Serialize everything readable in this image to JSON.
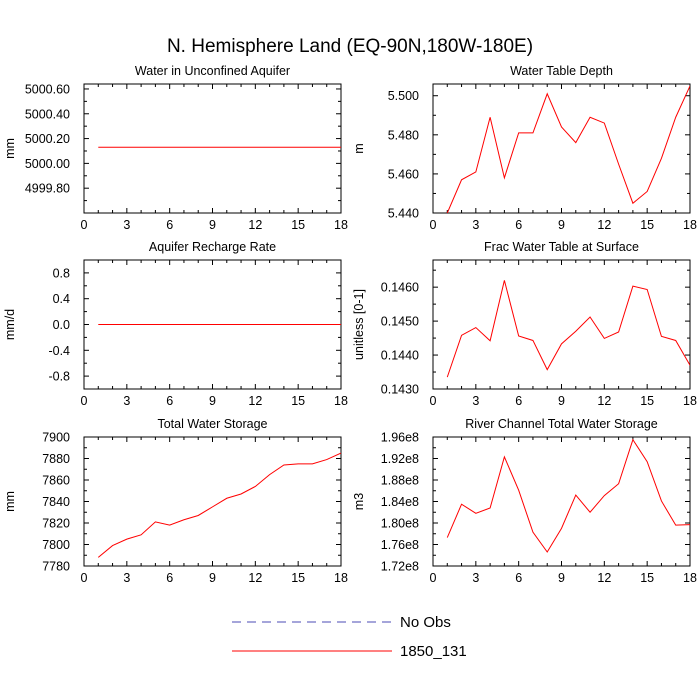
{
  "title": "N. Hemisphere Land (EQ-90N,180W-180E)",
  "colors": {
    "series": "#ff0000",
    "no_obs": "#4b4bb4",
    "axis": "#000000"
  },
  "legend": {
    "placement": "bottom-center",
    "items": [
      {
        "label": "No Obs",
        "style": "dashed",
        "color": "#4b4bb4"
      },
      {
        "label": "1850_131",
        "style": "solid",
        "color": "#ff0000"
      }
    ]
  },
  "chart_data": [
    {
      "type": "line",
      "title": "Water in Unconfined Aquifer",
      "ylabel": "mm",
      "xlim": [
        0,
        18
      ],
      "ylim": [
        4999.6,
        5000.64
      ],
      "xticks": [
        0,
        3,
        6,
        9,
        12,
        15,
        18
      ],
      "yticks": [
        4999.8,
        5000.0,
        5000.2,
        5000.4,
        5000.6
      ],
      "ytick_labels": [
        "4999.80",
        "5000.00",
        "5000.20",
        "5000.40",
        "5000.60"
      ],
      "series": [
        {
          "name": "1850_131",
          "x": [
            1,
            2,
            3,
            4,
            5,
            6,
            7,
            8,
            9,
            10,
            11,
            12,
            13,
            14,
            15,
            16,
            17,
            18
          ],
          "y": [
            5000.13,
            5000.13,
            5000.13,
            5000.13,
            5000.13,
            5000.13,
            5000.13,
            5000.13,
            5000.13,
            5000.13,
            5000.13,
            5000.13,
            5000.13,
            5000.13,
            5000.13,
            5000.13,
            5000.13,
            5000.13
          ]
        }
      ]
    },
    {
      "type": "line",
      "title": "Water Table Depth",
      "ylabel": "m",
      "xlim": [
        0,
        18
      ],
      "ylim": [
        5.44,
        5.506
      ],
      "xticks": [
        0,
        3,
        6,
        9,
        12,
        15,
        18
      ],
      "yticks": [
        5.44,
        5.46,
        5.48,
        5.5
      ],
      "ytick_labels": [
        "5.440",
        "5.460",
        "5.480",
        "5.500"
      ],
      "series": [
        {
          "name": "1850_131",
          "x": [
            1,
            2,
            3,
            4,
            5,
            6,
            7,
            8,
            9,
            10,
            11,
            12,
            13,
            14,
            15,
            16,
            17,
            18
          ],
          "y": [
            5.44,
            5.457,
            5.461,
            5.489,
            5.458,
            5.481,
            5.481,
            5.501,
            5.484,
            5.476,
            5.489,
            5.486,
            5.465,
            5.445,
            5.451,
            5.468,
            5.489,
            5.505
          ]
        }
      ]
    },
    {
      "type": "line",
      "title": "Aquifer Recharge Rate",
      "ylabel": "mm/d",
      "xlim": [
        0,
        18
      ],
      "ylim": [
        -1.0,
        1.0
      ],
      "xticks": [
        0,
        3,
        6,
        9,
        12,
        15,
        18
      ],
      "yticks": [
        -0.8,
        -0.4,
        0.0,
        0.4,
        0.8
      ],
      "ytick_labels": [
        "-0.8",
        "-0.4",
        "0.0",
        "0.4",
        "0.8"
      ],
      "series": [
        {
          "name": "1850_131",
          "x": [
            1,
            2,
            3,
            4,
            5,
            6,
            7,
            8,
            9,
            10,
            11,
            12,
            13,
            14,
            15,
            16,
            17,
            18
          ],
          "y": [
            0,
            0,
            0,
            0,
            0,
            0,
            0,
            0,
            0,
            0,
            0,
            0,
            0,
            0,
            0,
            0,
            0,
            0
          ]
        }
      ]
    },
    {
      "type": "line",
      "title": "Frac Water Table at Surface",
      "ylabel": "unitless [0-1]",
      "xlim": [
        0,
        18
      ],
      "ylim": [
        0.143,
        0.1468
      ],
      "xticks": [
        0,
        3,
        6,
        9,
        12,
        15,
        18
      ],
      "yticks": [
        0.143,
        0.144,
        0.145,
        0.146
      ],
      "ytick_labels": [
        "0.1430",
        "0.1440",
        "0.1450",
        "0.1460"
      ],
      "series": [
        {
          "name": "1850_131",
          "x": [
            1,
            2,
            3,
            4,
            5,
            6,
            7,
            8,
            9,
            10,
            11,
            12,
            13,
            14,
            15,
            16,
            17,
            18
          ],
          "y": [
            0.14335,
            0.14458,
            0.14481,
            0.14442,
            0.1462,
            0.14456,
            0.14443,
            0.14357,
            0.14433,
            0.1447,
            0.14512,
            0.14449,
            0.14468,
            0.14603,
            0.14593,
            0.14455,
            0.14443,
            0.1437
          ]
        }
      ]
    },
    {
      "type": "line",
      "title": "Total Water Storage",
      "ylabel": "mm",
      "xlim": [
        0,
        18
      ],
      "ylim": [
        7780,
        7900
      ],
      "xticks": [
        0,
        3,
        6,
        9,
        12,
        15,
        18
      ],
      "yticks": [
        7780,
        7800,
        7820,
        7840,
        7860,
        7880,
        7900
      ],
      "ytick_labels": [
        "7780",
        "7800",
        "7820",
        "7840",
        "7860",
        "7880",
        "7900"
      ],
      "series": [
        {
          "name": "1850_131",
          "x": [
            1,
            2,
            3,
            4,
            5,
            6,
            7,
            8,
            9,
            10,
            11,
            12,
            13,
            14,
            15,
            16,
            17,
            18
          ],
          "y": [
            7788,
            7799,
            7805,
            7809,
            7821,
            7818,
            7823,
            7827,
            7835,
            7843,
            7847,
            7854,
            7865,
            7874,
            7875,
            7875,
            7879,
            7885
          ]
        }
      ]
    },
    {
      "type": "line",
      "title": "River Channel Total Water Storage",
      "ylabel": "m3",
      "xlim": [
        0,
        18
      ],
      "ylim": [
        172000000,
        196000000
      ],
      "xticks": [
        0,
        3,
        6,
        9,
        12,
        15,
        18
      ],
      "yticks": [
        172000000,
        176000000,
        180000000,
        184000000,
        188000000,
        192000000,
        196000000
      ],
      "ytick_labels": [
        "1.72e8",
        "1.76e8",
        "1.80e8",
        "1.84e8",
        "1.88e8",
        "1.92e8",
        "1.96e8"
      ],
      "series": [
        {
          "name": "1850_131",
          "x": [
            1,
            2,
            3,
            4,
            5,
            6,
            7,
            8,
            9,
            10,
            11,
            12,
            13,
            14,
            15,
            16,
            17,
            18
          ],
          "y": [
            177300000,
            183500000,
            181800000,
            182800000,
            192300000,
            186100000,
            178300000,
            174600000,
            179000000,
            185200000,
            182000000,
            185100000,
            187300000,
            195500000,
            191400000,
            184100000,
            179600000,
            179700000
          ]
        }
      ]
    }
  ]
}
